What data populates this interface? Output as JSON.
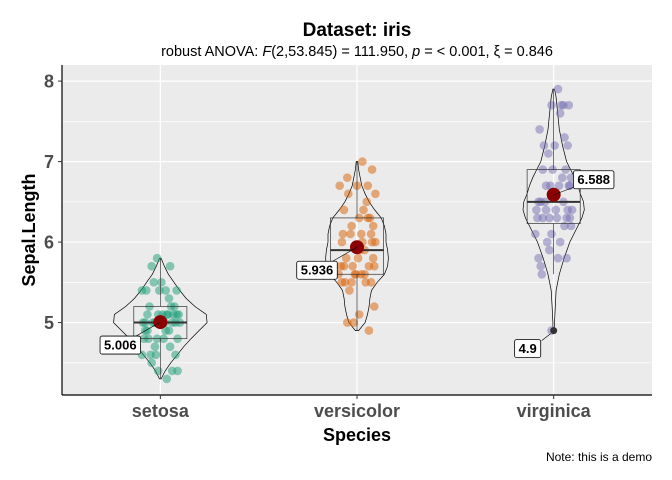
{
  "chart_data": {
    "type": "violin",
    "title": "Dataset: iris",
    "subtitle": {
      "prefix": "robust ANOVA: ",
      "F": "F",
      "f_args": "(2,53.845) = 111.950, ",
      "p": "p",
      "p_text": " = < 0.001, ",
      "xi": "ξ",
      "xi_text": " = 0.846"
    },
    "xlabel": "Species",
    "ylabel": "Sepal.Length",
    "caption": "Note: this is a demo",
    "ylim": [
      4.1,
      8.2
    ],
    "yticks": [
      5,
      6,
      7,
      8
    ],
    "categories": [
      "setosa",
      "versicolor",
      "virginica"
    ],
    "colors": {
      "panel": "#ebebeb",
      "grid": "#ffffff",
      "mean": "#8b0000",
      "setosa": "#1b9e77",
      "versicolor": "#d95f02",
      "virginica": "#7570b3"
    },
    "groups": [
      {
        "name": "setosa",
        "box": {
          "q1": 4.8,
          "median": 5.0,
          "q3": 5.2,
          "whisker_low": 4.3,
          "whisker_high": 5.8
        },
        "mean": 5.006,
        "mean_label": "5.006",
        "violin": [
          [
            4.3,
            0.01
          ],
          [
            4.4,
            0.06
          ],
          [
            4.5,
            0.13
          ],
          [
            4.6,
            0.21
          ],
          [
            4.7,
            0.29
          ],
          [
            4.8,
            0.38
          ],
          [
            4.9,
            0.48
          ],
          [
            5.0,
            0.58
          ],
          [
            5.1,
            0.57
          ],
          [
            5.2,
            0.43
          ],
          [
            5.3,
            0.32
          ],
          [
            5.4,
            0.24
          ],
          [
            5.5,
            0.17
          ],
          [
            5.6,
            0.1
          ],
          [
            5.7,
            0.05
          ],
          [
            5.8,
            0.01
          ]
        ],
        "violin_halfwidth": 0.41,
        "points": [
          [
            5.1,
            -0.12
          ],
          [
            4.9,
            0.08
          ],
          [
            4.7,
            -0.05
          ],
          [
            4.6,
            0.14
          ],
          [
            5.0,
            -0.16
          ],
          [
            5.4,
            0.05
          ],
          [
            4.6,
            -0.09
          ],
          [
            5.0,
            0.11
          ],
          [
            4.4,
            -0.02
          ],
          [
            4.9,
            -0.14
          ],
          [
            5.4,
            0.15
          ],
          [
            4.8,
            0.03
          ],
          [
            4.8,
            -0.11
          ],
          [
            4.3,
            0.06
          ],
          [
            5.8,
            -0.03
          ],
          [
            5.7,
            0.09
          ],
          [
            5.4,
            -0.13
          ],
          [
            5.1,
            0.17
          ],
          [
            5.7,
            -0.08
          ],
          [
            5.1,
            0.02
          ],
          [
            5.4,
            -0.17
          ],
          [
            5.1,
            0.12
          ],
          [
            4.6,
            -0.04
          ],
          [
            5.1,
            0.07
          ],
          [
            4.8,
            0.16
          ],
          [
            5.0,
            -0.07
          ],
          [
            5.0,
            0.04
          ],
          [
            5.2,
            -0.1
          ],
          [
            5.2,
            0.13
          ],
          [
            4.7,
            0.09
          ],
          [
            4.8,
            -0.15
          ],
          [
            5.4,
            -0.01
          ],
          [
            5.2,
            0.1
          ],
          [
            5.5,
            -0.06
          ],
          [
            4.9,
            0.05
          ],
          [
            5.0,
            0.14
          ],
          [
            5.5,
            0.01
          ],
          [
            4.9,
            -0.12
          ],
          [
            4.4,
            0.11
          ],
          [
            5.1,
            -0.02
          ],
          [
            5.0,
            0.18
          ],
          [
            4.5,
            -0.08
          ],
          [
            4.4,
            0.16
          ],
          [
            5.0,
            -0.14
          ],
          [
            5.1,
            0.06
          ],
          [
            4.8,
            -0.03
          ],
          [
            5.1,
            0.15
          ],
          [
            4.6,
            -0.17
          ],
          [
            5.3,
            0.08
          ],
          [
            5.0,
            -0.05
          ]
        ],
        "outliers": []
      },
      {
        "name": "versicolor",
        "box": {
          "q1": 5.6,
          "median": 5.9,
          "q3": 6.3,
          "whisker_low": 4.9,
          "whisker_high": 7.0
        },
        "mean": 5.936,
        "mean_label": "5.936",
        "violin": [
          [
            4.9,
            0.02
          ],
          [
            5.0,
            0.1
          ],
          [
            5.1,
            0.13
          ],
          [
            5.2,
            0.15
          ],
          [
            5.3,
            0.16
          ],
          [
            5.4,
            0.18
          ],
          [
            5.5,
            0.25
          ],
          [
            5.6,
            0.34
          ],
          [
            5.7,
            0.38
          ],
          [
            5.8,
            0.39
          ],
          [
            5.9,
            0.38
          ],
          [
            6.0,
            0.36
          ],
          [
            6.1,
            0.36
          ],
          [
            6.2,
            0.34
          ],
          [
            6.3,
            0.3
          ],
          [
            6.4,
            0.22
          ],
          [
            6.5,
            0.15
          ],
          [
            6.6,
            0.1
          ],
          [
            6.7,
            0.06
          ],
          [
            6.8,
            0.04
          ],
          [
            6.9,
            0.02
          ],
          [
            7.0,
            0.01
          ]
        ],
        "violin_halfwidth": 0.41,
        "points": [
          [
            7.0,
            0.05
          ],
          [
            6.4,
            -0.12
          ],
          [
            6.9,
            0.14
          ],
          [
            5.5,
            -0.05
          ],
          [
            6.5,
            0.09
          ],
          [
            5.7,
            -0.15
          ],
          [
            6.3,
            0.02
          ],
          [
            4.9,
            0.11
          ],
          [
            6.6,
            -0.08
          ],
          [
            5.2,
            0.16
          ],
          [
            5.0,
            -0.03
          ],
          [
            5.9,
            0.07
          ],
          [
            6.0,
            -0.14
          ],
          [
            6.1,
            0.13
          ],
          [
            5.6,
            -0.01
          ],
          [
            6.7,
            0.1
          ],
          [
            5.6,
            0.04
          ],
          [
            5.8,
            -0.1
          ],
          [
            6.2,
            0.15
          ],
          [
            5.6,
            -0.17
          ],
          [
            5.9,
            0.03
          ],
          [
            6.1,
            -0.06
          ],
          [
            6.3,
            0.12
          ],
          [
            6.1,
            -0.13
          ],
          [
            6.4,
            0.06
          ],
          [
            6.6,
            0.17
          ],
          [
            6.8,
            -0.09
          ],
          [
            6.7,
            0.0
          ],
          [
            6.0,
            0.14
          ],
          [
            5.7,
            -0.04
          ],
          [
            5.5,
            0.08
          ],
          [
            5.5,
            -0.11
          ],
          [
            5.8,
            0.01
          ],
          [
            6.0,
            0.17
          ],
          [
            5.4,
            -0.07
          ],
          [
            6.0,
            0.05
          ],
          [
            6.7,
            -0.16
          ],
          [
            6.3,
            0.1
          ],
          [
            5.6,
            -0.02
          ],
          [
            5.5,
            0.13
          ],
          [
            5.5,
            -0.14
          ],
          [
            6.1,
            0.04
          ],
          [
            5.8,
            0.15
          ],
          [
            5.0,
            -0.09
          ],
          [
            5.6,
            0.07
          ],
          [
            5.7,
            -0.12
          ],
          [
            5.7,
            0.11
          ],
          [
            6.2,
            -0.05
          ],
          [
            5.1,
            0.02
          ],
          [
            5.7,
            0.16
          ]
        ],
        "outliers": []
      },
      {
        "name": "virginica",
        "box": {
          "q1": 6.23,
          "median": 6.5,
          "q3": 6.9,
          "whisker_low": 5.6,
          "whisker_high": 7.9
        },
        "mean": 6.588,
        "mean_label": "6.588",
        "violin": [
          [
            4.9,
            0.01
          ],
          [
            5.0,
            0.01
          ],
          [
            5.2,
            0.02
          ],
          [
            5.4,
            0.03
          ],
          [
            5.6,
            0.07
          ],
          [
            5.8,
            0.13
          ],
          [
            6.0,
            0.2
          ],
          [
            6.2,
            0.3
          ],
          [
            6.3,
            0.35
          ],
          [
            6.4,
            0.38
          ],
          [
            6.5,
            0.37
          ],
          [
            6.6,
            0.33
          ],
          [
            6.7,
            0.3
          ],
          [
            6.8,
            0.26
          ],
          [
            6.9,
            0.21
          ],
          [
            7.0,
            0.16
          ],
          [
            7.2,
            0.11
          ],
          [
            7.4,
            0.07
          ],
          [
            7.6,
            0.05
          ],
          [
            7.7,
            0.04
          ],
          [
            7.8,
            0.03
          ],
          [
            7.9,
            0.01
          ]
        ],
        "violin_halfwidth": 0.41,
        "points": [
          [
            6.3,
            -0.1
          ],
          [
            5.8,
            0.12
          ],
          [
            7.1,
            -0.05
          ],
          [
            6.3,
            0.15
          ],
          [
            6.5,
            -0.14
          ],
          [
            7.6,
            0.06
          ],
          [
            7.3,
            0.1
          ],
          [
            6.7,
            -0.03
          ],
          [
            7.2,
            0.13
          ],
          [
            6.5,
            -0.08
          ],
          [
            6.4,
            0.02
          ],
          [
            6.8,
            0.16
          ],
          [
            5.7,
            -0.12
          ],
          [
            5.8,
            0.04
          ],
          [
            6.4,
            -0.16
          ],
          [
            6.5,
            0.09
          ],
          [
            7.7,
            -0.02
          ],
          [
            7.7,
            0.14
          ],
          [
            6.0,
            -0.06
          ],
          [
            6.9,
            0.11
          ],
          [
            5.6,
            -0.11
          ],
          [
            7.7,
            0.07
          ],
          [
            6.3,
            -0.15
          ],
          [
            6.7,
            0.05
          ],
          [
            7.2,
            -0.09
          ],
          [
            6.2,
            0.16
          ],
          [
            6.1,
            -0.02
          ],
          [
            6.4,
            0.13
          ],
          [
            7.2,
            0.01
          ],
          [
            7.4,
            -0.13
          ],
          [
            7.9,
            0.04
          ],
          [
            6.4,
            -0.07
          ],
          [
            6.3,
            0.12
          ],
          [
            6.1,
            -0.17
          ],
          [
            7.7,
            0.09
          ],
          [
            6.3,
            -0.04
          ],
          [
            6.4,
            0.17
          ],
          [
            6.0,
            0.06
          ],
          [
            6.9,
            -0.1
          ],
          [
            6.7,
            0.14
          ],
          [
            6.9,
            -0.01
          ],
          [
            5.8,
            -0.14
          ],
          [
            6.8,
            0.08
          ],
          [
            6.7,
            -0.07
          ],
          [
            6.7,
            0.15
          ],
          [
            6.3,
            0.03
          ],
          [
            6.5,
            -0.12
          ],
          [
            6.2,
            0.1
          ],
          [
            5.9,
            -0.04
          ],
          [
            4.9,
            -0.02
          ]
        ],
        "outliers": [
          {
            "value": 4.9,
            "label": "4.9"
          }
        ]
      }
    ]
  }
}
